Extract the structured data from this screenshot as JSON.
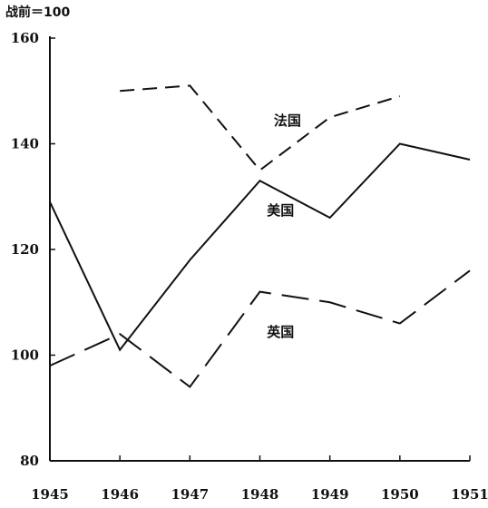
{
  "chart_data": {
    "type": "line",
    "unit_label": "战前＝100",
    "x": [
      1945,
      1946,
      1947,
      1948,
      1949,
      1950,
      1951
    ],
    "x_tick_labels": [
      "1945",
      "1946",
      "1947",
      "1948",
      "1949",
      "1950",
      "1951"
    ],
    "y_ticks": [
      80,
      100,
      120,
      140,
      160
    ],
    "y_tick_labels": [
      "80",
      "100",
      "120",
      "140",
      "160"
    ],
    "ylim": [
      80,
      160
    ],
    "grid": false,
    "series": [
      {
        "name": "法国",
        "style": "dashed-short",
        "values": [
          null,
          150,
          151,
          135,
          145,
          149,
          null
        ]
      },
      {
        "name": "美国",
        "style": "solid",
        "values": [
          129,
          101,
          118,
          133,
          126,
          140,
          137
        ]
      },
      {
        "name": "英国",
        "style": "dashed-long",
        "values": [
          98,
          104,
          94,
          112,
          110,
          106,
          116
        ]
      }
    ],
    "colors": {
      "line": "#111111",
      "background": "#ffffff"
    }
  }
}
